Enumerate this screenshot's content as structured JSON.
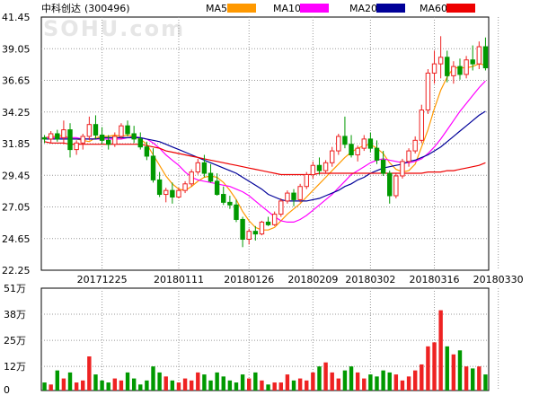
{
  "header": {
    "stock": "中科创达",
    "code": "(300496)",
    "watermark": "SOHU.com"
  },
  "legend": [
    {
      "label": "MA5",
      "color": "#ff9900"
    },
    {
      "label": "MA10",
      "color": "#ff00ff"
    },
    {
      "label": "MA20",
      "color": "#000099"
    },
    {
      "label": "MA60",
      "color": "#ee0000"
    }
  ],
  "chart_data": [
    {
      "type": "candlestick",
      "ylim": [
        22.25,
        41.45
      ],
      "yticks": [
        "41.45",
        "39.05",
        "36.65",
        "34.25",
        "31.85",
        "29.45",
        "27.05",
        "24.65",
        "22.25"
      ],
      "xtick_labels": [
        {
          "label": "20171225",
          "index": 9
        },
        {
          "label": "20180111",
          "index": 21
        },
        {
          "label": "20180126",
          "index": 32
        },
        {
          "label": "20180209",
          "index": 42
        },
        {
          "label": "20180302",
          "index": 51
        },
        {
          "label": "20180316",
          "index": 61
        },
        {
          "label": "20180330",
          "index": 71
        }
      ],
      "up_color": "#ee2222",
      "down_color": "#009900",
      "ohlc": [
        [
          32.3,
          32.5,
          31.9,
          32.2
        ],
        [
          32.2,
          32.8,
          31.9,
          32.6
        ],
        [
          32.6,
          32.9,
          32.0,
          32.2
        ],
        [
          32.3,
          33.6,
          31.8,
          32.9
        ],
        [
          32.9,
          33.4,
          30.8,
          31.4
        ],
        [
          31.4,
          32.1,
          31.0,
          31.9
        ],
        [
          31.9,
          32.6,
          31.4,
          32.4
        ],
        [
          32.4,
          33.9,
          32.1,
          33.3
        ],
        [
          33.3,
          34.0,
          32.2,
          32.5
        ],
        [
          32.5,
          33.1,
          31.8,
          32.1
        ],
        [
          32.1,
          32.5,
          31.4,
          31.8
        ],
        [
          31.8,
          32.7,
          31.6,
          32.4
        ],
        [
          32.4,
          33.4,
          32.2,
          33.2
        ],
        [
          33.2,
          33.6,
          32.4,
          32.6
        ],
        [
          32.6,
          33.2,
          31.9,
          32.2
        ],
        [
          32.2,
          32.7,
          31.4,
          31.6
        ],
        [
          31.6,
          32.0,
          30.6,
          30.9
        ],
        [
          30.9,
          31.5,
          28.9,
          29.1
        ],
        [
          29.1,
          29.7,
          27.8,
          28.0
        ],
        [
          28.0,
          28.5,
          27.4,
          28.3
        ],
        [
          28.3,
          28.9,
          27.3,
          27.8
        ],
        [
          27.8,
          28.5,
          27.7,
          28.3
        ],
        [
          28.3,
          29.0,
          28.1,
          28.8
        ],
        [
          28.8,
          29.9,
          28.6,
          29.7
        ],
        [
          29.7,
          30.7,
          29.5,
          30.4
        ],
        [
          30.4,
          31.0,
          29.3,
          29.6
        ],
        [
          29.6,
          30.3,
          28.9,
          29.0
        ],
        [
          29.0,
          29.6,
          27.9,
          28.0
        ],
        [
          28.0,
          28.6,
          27.2,
          27.4
        ],
        [
          27.4,
          27.9,
          26.9,
          27.2
        ],
        [
          27.2,
          27.6,
          25.9,
          26.1
        ],
        [
          26.1,
          26.3,
          24.0,
          24.6
        ],
        [
          24.6,
          25.4,
          24.2,
          25.2
        ],
        [
          25.2,
          25.6,
          24.5,
          25.0
        ],
        [
          25.0,
          26.0,
          24.9,
          25.9
        ],
        [
          25.9,
          26.3,
          25.6,
          25.7
        ],
        [
          25.7,
          26.7,
          25.6,
          26.5
        ],
        [
          26.5,
          27.7,
          26.3,
          27.5
        ],
        [
          27.5,
          28.3,
          27.3,
          28.1
        ],
        [
          28.1,
          28.4,
          27.1,
          27.6
        ],
        [
          27.6,
          28.8,
          27.4,
          28.6
        ],
        [
          28.6,
          29.7,
          28.4,
          29.5
        ],
        [
          29.5,
          30.5,
          29.2,
          30.2
        ],
        [
          30.2,
          30.8,
          29.5,
          29.8
        ],
        [
          29.8,
          30.6,
          29.6,
          30.4
        ],
        [
          30.4,
          31.6,
          30.1,
          31.3
        ],
        [
          31.3,
          32.6,
          31.0,
          32.4
        ],
        [
          32.4,
          33.9,
          31.5,
          31.8
        ],
        [
          31.8,
          32.5,
          30.8,
          31.0
        ],
        [
          31.0,
          31.7,
          30.5,
          31.5
        ],
        [
          31.5,
          32.5,
          31.3,
          32.2
        ],
        [
          32.2,
          32.7,
          31.2,
          31.5
        ],
        [
          31.5,
          32.1,
          30.3,
          30.6
        ],
        [
          30.6,
          31.3,
          29.4,
          29.6
        ],
        [
          29.6,
          29.8,
          27.3,
          27.9
        ],
        [
          27.9,
          29.6,
          27.7,
          29.4
        ],
        [
          29.4,
          30.7,
          29.2,
          30.5
        ],
        [
          30.5,
          31.5,
          30.1,
          31.3
        ],
        [
          31.3,
          32.4,
          31.1,
          32.1
        ],
        [
          32.1,
          34.8,
          31.9,
          34.4
        ],
        [
          34.4,
          37.5,
          34.1,
          37.2
        ],
        [
          37.2,
          38.9,
          36.4,
          37.9
        ],
        [
          37.9,
          40.0,
          36.8,
          38.4
        ],
        [
          38.4,
          38.9,
          36.5,
          37.0
        ],
        [
          37.0,
          38.1,
          36.4,
          37.7
        ],
        [
          37.7,
          38.3,
          36.7,
          37.1
        ],
        [
          37.1,
          38.5,
          36.8,
          38.2
        ],
        [
          38.2,
          39.3,
          37.4,
          37.9
        ],
        [
          37.9,
          39.6,
          37.5,
          39.2
        ],
        [
          39.2,
          39.9,
          37.4,
          37.6
        ]
      ],
      "ma": {
        "MA5": [
          32.3,
          32.4,
          32.4,
          32.5,
          32.2,
          32.2,
          32.1,
          32.0,
          32.3,
          32.4,
          32.4,
          32.5,
          32.4,
          32.5,
          32.4,
          32.2,
          31.8,
          31.0,
          30.2,
          29.4,
          28.8,
          28.4,
          28.3,
          28.6,
          29.0,
          29.3,
          29.4,
          29.3,
          28.9,
          28.3,
          27.6,
          26.7,
          26.0,
          25.5,
          25.3,
          25.3,
          25.5,
          26.0,
          26.5,
          26.9,
          27.3,
          27.8,
          28.3,
          28.8,
          29.3,
          29.8,
          30.3,
          30.8,
          31.2,
          31.5,
          31.7,
          31.8,
          31.5,
          31.1,
          30.4,
          29.9,
          29.7,
          29.8,
          30.3,
          31.6,
          32.9,
          34.5,
          35.9,
          36.9,
          37.6,
          37.6,
          37.6,
          37.7,
          37.9,
          37.8
        ],
        "MA10": [
          32.3,
          32.3,
          32.3,
          32.3,
          32.3,
          32.3,
          32.2,
          32.2,
          32.2,
          32.2,
          32.2,
          32.2,
          32.2,
          32.3,
          32.4,
          32.3,
          32.2,
          31.9,
          31.5,
          31.0,
          30.6,
          30.2,
          29.7,
          29.3,
          29.1,
          29.0,
          28.9,
          28.8,
          28.7,
          28.6,
          28.4,
          28.2,
          27.9,
          27.5,
          27.1,
          26.7,
          26.3,
          26.0,
          25.9,
          25.9,
          26.1,
          26.4,
          26.8,
          27.2,
          27.6,
          28.0,
          28.5,
          29.0,
          29.5,
          29.8,
          30.1,
          30.4,
          30.6,
          30.7,
          30.6,
          30.5,
          30.4,
          30.4,
          30.5,
          30.7,
          31.1,
          31.6,
          32.2,
          32.9,
          33.6,
          34.3,
          34.9,
          35.5,
          36.1,
          36.6
        ],
        "MA20": [
          32.2,
          32.2,
          32.2,
          32.2,
          32.2,
          32.2,
          32.2,
          32.2,
          32.2,
          32.3,
          32.3,
          32.3,
          32.3,
          32.3,
          32.3,
          32.3,
          32.2,
          32.1,
          32.0,
          31.8,
          31.6,
          31.4,
          31.2,
          31.0,
          30.8,
          30.6,
          30.4,
          30.2,
          30.0,
          29.8,
          29.6,
          29.3,
          29.0,
          28.7,
          28.4,
          28.0,
          27.8,
          27.6,
          27.5,
          27.5,
          27.5,
          27.5,
          27.6,
          27.7,
          27.9,
          28.1,
          28.3,
          28.6,
          28.8,
          29.1,
          29.3,
          29.6,
          29.8,
          30.0,
          30.1,
          30.2,
          30.3,
          30.5,
          30.6,
          30.8,
          31.0,
          31.3,
          31.6,
          32.0,
          32.4,
          32.8,
          33.2,
          33.6,
          34.0,
          34.3
        ],
        "MA60": [
          32.0,
          31.9,
          31.9,
          31.9,
          31.8,
          31.8,
          31.8,
          31.8,
          31.8,
          31.8,
          31.8,
          31.8,
          31.8,
          31.8,
          31.8,
          31.8,
          31.7,
          31.6,
          31.5,
          31.3,
          31.2,
          31.1,
          31.0,
          30.9,
          30.8,
          30.7,
          30.6,
          30.5,
          30.4,
          30.3,
          30.2,
          30.1,
          30.0,
          29.9,
          29.8,
          29.7,
          29.6,
          29.5,
          29.5,
          29.5,
          29.5,
          29.5,
          29.5,
          29.6,
          29.6,
          29.6,
          29.6,
          29.6,
          29.6,
          29.6,
          29.6,
          29.6,
          29.6,
          29.6,
          29.6,
          29.6,
          29.6,
          29.6,
          29.6,
          29.6,
          29.7,
          29.7,
          29.7,
          29.8,
          29.8,
          29.9,
          30.0,
          30.1,
          30.2,
          30.4
        ]
      }
    },
    {
      "type": "bar",
      "ylim": [
        0,
        51
      ],
      "yticks": [
        {
          "label": "51万",
          "value": 51
        },
        {
          "label": "38万",
          "value": 38
        },
        {
          "label": "25万",
          "value": 25
        },
        {
          "label": "12万",
          "value": 12
        },
        {
          "label": "0",
          "value": 0
        }
      ],
      "unit": "万",
      "values": [
        4,
        3,
        10,
        6,
        9,
        4,
        5,
        17,
        8,
        5,
        4,
        6,
        5,
        9,
        6,
        3,
        5,
        12,
        9,
        7,
        5,
        4,
        6,
        5,
        9,
        8,
        5,
        9,
        7,
        5,
        4,
        8,
        6,
        9,
        5,
        3,
        4,
        4,
        8,
        5,
        6,
        5,
        9,
        12,
        14,
        9,
        6,
        10,
        12,
        9,
        6,
        8,
        7,
        10,
        9,
        8,
        5,
        7,
        10,
        13,
        22,
        24,
        40,
        22,
        18,
        20,
        12,
        11,
        12,
        8
      ]
    }
  ]
}
